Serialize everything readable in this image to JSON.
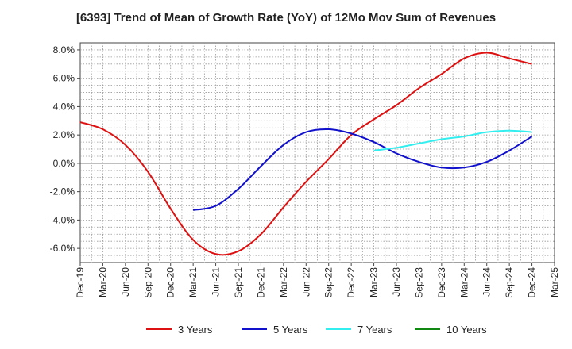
{
  "chart_data": {
    "type": "line",
    "title": "[6393]  Trend of Mean of Growth Rate (YoY) of 12Mo Mov Sum of Revenues",
    "xlabel": "",
    "ylabel": "",
    "ylim": [
      -7.0,
      8.5
    ],
    "grid": true,
    "legend_position": "bottom",
    "y_ticks": [
      8.0,
      6.0,
      4.0,
      2.0,
      0.0,
      -2.0,
      -4.0,
      -6.0
    ],
    "y_tick_labels": [
      "8.0%",
      "6.0%",
      "4.0%",
      "2.0%",
      "0.0%",
      "-2.0%",
      "-4.0%",
      "-6.0%"
    ],
    "x_tick_labels": [
      "Dec-19",
      "Mar-20",
      "Jun-20",
      "Sep-20",
      "Dec-20",
      "Mar-21",
      "Jun-21",
      "Sep-21",
      "Dec-21",
      "Mar-22",
      "Jun-22",
      "Sep-22",
      "Dec-22",
      "Mar-23",
      "Jun-23",
      "Sep-23",
      "Dec-23",
      "Mar-24",
      "Jun-24",
      "Sep-24",
      "Dec-24",
      "Mar-25"
    ],
    "series": [
      {
        "name": "3 Years",
        "color": "#dd1111",
        "points": [
          [
            0,
            2.9
          ],
          [
            1,
            2.4
          ],
          [
            2,
            1.3
          ],
          [
            3,
            -0.6
          ],
          [
            4,
            -3.2
          ],
          [
            5,
            -5.4
          ],
          [
            6,
            -6.4
          ],
          [
            7,
            -6.2
          ],
          [
            8,
            -5.0
          ],
          [
            9,
            -3.1
          ],
          [
            10,
            -1.3
          ],
          [
            11,
            0.3
          ],
          [
            12,
            2.0
          ],
          [
            13,
            3.1
          ],
          [
            14,
            4.1
          ],
          [
            15,
            5.3
          ],
          [
            16,
            6.3
          ],
          [
            17,
            7.4
          ],
          [
            18,
            7.8
          ],
          [
            19,
            7.4
          ],
          [
            20,
            7.0
          ]
        ]
      },
      {
        "name": "5 Years",
        "color": "#1111cc",
        "points": [
          [
            5,
            -3.3
          ],
          [
            6,
            -3.0
          ],
          [
            7,
            -1.8
          ],
          [
            8,
            -0.2
          ],
          [
            9,
            1.3
          ],
          [
            10,
            2.2
          ],
          [
            11,
            2.4
          ],
          [
            12,
            2.1
          ],
          [
            13,
            1.5
          ],
          [
            14,
            0.7
          ],
          [
            15,
            0.1
          ],
          [
            16,
            -0.3
          ],
          [
            17,
            -0.3
          ],
          [
            18,
            0.1
          ],
          [
            19,
            0.9
          ],
          [
            20,
            1.9
          ]
        ]
      },
      {
        "name": "7 Years",
        "color": "#33eeee",
        "points": [
          [
            13,
            0.9
          ],
          [
            14,
            1.1
          ],
          [
            15,
            1.4
          ],
          [
            16,
            1.7
          ],
          [
            17,
            1.9
          ],
          [
            18,
            2.2
          ],
          [
            19,
            2.3
          ],
          [
            20,
            2.2
          ]
        ]
      },
      {
        "name": "10 Years",
        "color": "#118811",
        "points": []
      }
    ]
  }
}
